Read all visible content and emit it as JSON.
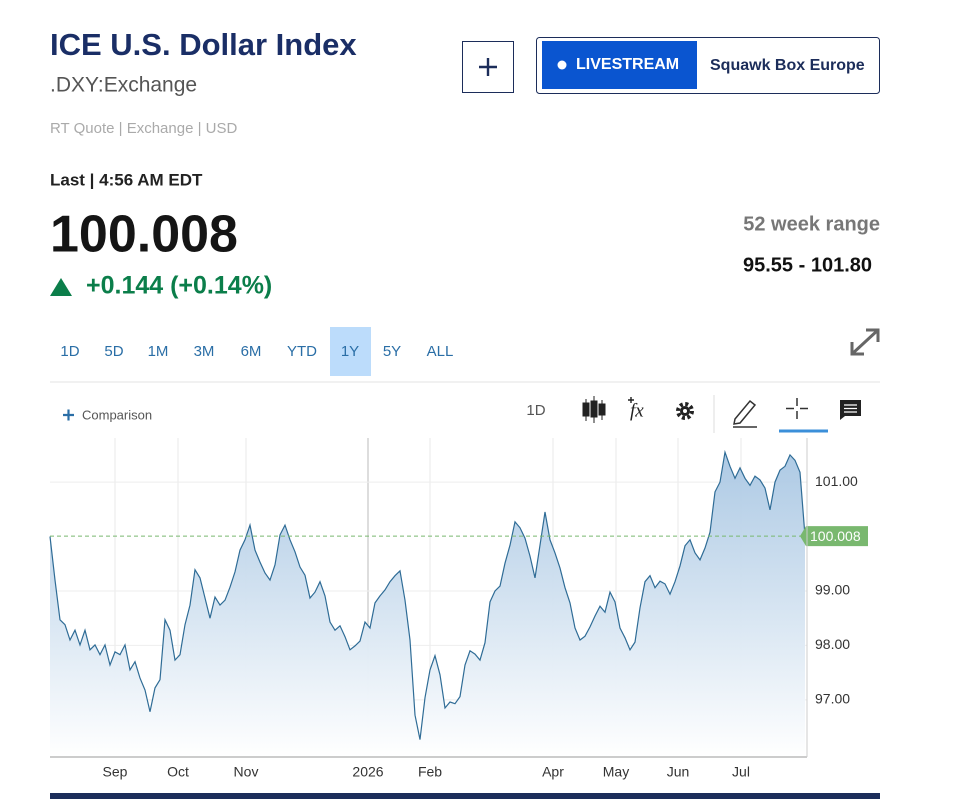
{
  "header": {
    "title": "ICE U.S. Dollar Index",
    "symbol": ".DXY:Exchange",
    "livestream": "LIVESTREAM",
    "program": "Squawk Box Europe",
    "meta": "RT Quote | Exchange | USD"
  },
  "quote": {
    "last": "Last | 4:56 AM EDT",
    "price": "100.008",
    "change": "+0.144 (+0.14%)",
    "range_label": "52 week range",
    "range": "95.55 - 101.80"
  },
  "range_tabs": {
    "items": [
      "1D",
      "5D",
      "1M",
      "3M",
      "6M",
      "YTD",
      "1Y",
      "5Y",
      "ALL"
    ],
    "selected": 6
  },
  "toolbar": {
    "comparison": "Comparison",
    "interval": "1D",
    "indicators": "fx"
  },
  "chart_data": {
    "type": "area",
    "color": "#2f6c96",
    "fill": "#a9c7e3",
    "price_label_color": "#79b86f",
    "values": [
      100.0,
      99.2,
      98.47,
      98.38,
      98.1,
      98.28,
      98.01,
      98.28,
      97.92,
      98.01,
      97.83,
      98.01,
      97.64,
      97.88,
      97.83,
      98.01,
      97.55,
      97.7,
      97.4,
      97.18,
      96.78,
      97.22,
      97.37,
      98.47,
      98.28,
      97.73,
      97.83,
      98.38,
      98.74,
      99.39,
      99.24,
      98.87,
      98.5,
      98.89,
      98.74,
      98.83,
      99.07,
      99.35,
      99.75,
      99.94,
      100.21,
      99.75,
      99.53,
      99.33,
      99.2,
      99.48,
      100.03,
      100.21,
      99.94,
      99.72,
      99.44,
      99.29,
      98.87,
      98.98,
      99.17,
      98.91,
      98.43,
      98.28,
      98.36,
      98.16,
      97.92,
      97.99,
      98.08,
      98.43,
      98.32,
      98.78,
      98.91,
      99.02,
      99.17,
      99.28,
      99.37,
      98.83,
      98.1,
      96.72,
      96.27,
      97.04,
      97.55,
      97.81,
      97.46,
      96.85,
      96.96,
      96.93,
      97.06,
      97.64,
      97.9,
      97.84,
      97.73,
      98.05,
      98.8,
      99.0,
      99.09,
      99.51,
      99.84,
      100.27,
      100.16,
      99.97,
      99.64,
      99.24,
      99.84,
      100.45,
      99.94,
      99.7,
      99.42,
      99.06,
      98.78,
      98.32,
      98.1,
      98.17,
      98.34,
      98.54,
      98.72,
      98.61,
      98.98,
      98.8,
      98.32,
      98.14,
      97.92,
      98.06,
      98.69,
      99.17,
      99.28,
      99.06,
      99.18,
      99.13,
      98.94,
      99.17,
      99.46,
      99.83,
      99.94,
      99.7,
      99.57,
      99.79,
      100.08,
      100.82,
      101.0,
      101.55,
      101.29,
      101.07,
      101.26,
      101.07,
      100.94,
      101.11,
      101.04,
      100.89,
      100.49,
      101.0,
      101.22,
      101.29,
      101.5,
      101.4,
      101.18,
      100.008
    ],
    "xlim": [
      0,
      151
    ],
    "xticks": [
      {
        "value": 13,
        "label": "Sep"
      },
      {
        "value": 25.6,
        "label": "Oct"
      },
      {
        "value": 39.2,
        "label": "Nov"
      },
      {
        "value": 63.6,
        "label": "2026"
      },
      {
        "value": 76,
        "label": "Feb"
      },
      {
        "value": 100.6,
        "label": "Apr"
      },
      {
        "value": 113.2,
        "label": "May"
      },
      {
        "value": 125.6,
        "label": "Jun"
      },
      {
        "value": 138.2,
        "label": "Jul"
      }
    ],
    "ylim": [
      95.95,
      101.81
    ],
    "yticks": [
      {
        "value": 97,
        "label": "97.00"
      },
      {
        "value": 98,
        "label": "98.00"
      },
      {
        "value": 99,
        "label": "99.00"
      },
      {
        "value": 101,
        "label": "101.00"
      }
    ],
    "grid": true
  }
}
